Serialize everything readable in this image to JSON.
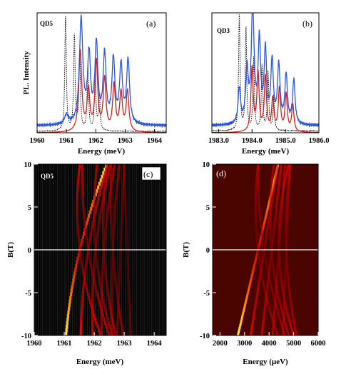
{
  "chart_data": [
    {
      "panel": "a",
      "type": "line",
      "panel_label": "(a)",
      "dot_label": "QD5",
      "xlabel": "Energy (meV)",
      "ylabel": "PL. Intensity",
      "xlim": [
        1960,
        1964.4
      ],
      "xticks": [
        1960,
        1961,
        1962,
        1963,
        1964
      ],
      "ylim": [
        0,
        1
      ],
      "grid": false,
      "series": [
        {
          "style": "dotted",
          "color": "#000000",
          "background": 0.012,
          "peaks": [
            [
              1960.97,
              1.0,
              0.03
            ],
            [
              1961.27,
              0.82,
              0.03
            ],
            [
              1961.45,
              0.66,
              0.03
            ],
            [
              1961.73,
              0.55,
              0.03
            ],
            [
              1961.98,
              0.47,
              0.03
            ],
            [
              1962.12,
              0.32,
              0.03
            ]
          ]
        },
        {
          "style": "solid",
          "color": "#d42020",
          "background": 0.0,
          "peaks": [
            [
              1961.47,
              0.7,
              0.06
            ],
            [
              1961.75,
              0.35,
              0.055
            ],
            [
              1962.02,
              0.6,
              0.055
            ],
            [
              1962.3,
              0.45,
              0.055
            ],
            [
              1962.62,
              0.4,
              0.055
            ],
            [
              1962.86,
              0.33,
              0.055
            ],
            [
              1963.08,
              0.35,
              0.055
            ]
          ]
        },
        {
          "style": "solid",
          "color": "#2c55e0",
          "background": 0.06,
          "peaks": [
            [
              1961.5,
              0.9,
              0.07
            ],
            [
              1961.77,
              0.58,
              0.06
            ],
            [
              1962.02,
              0.68,
              0.06
            ],
            [
              1962.3,
              0.59,
              0.06
            ],
            [
              1962.6,
              0.55,
              0.06
            ],
            [
              1962.86,
              0.5,
              0.06
            ],
            [
              1963.1,
              0.55,
              0.06
            ],
            [
              1961.0,
              0.08,
              0.08
            ]
          ]
        }
      ]
    },
    {
      "panel": "b",
      "type": "line",
      "panel_label": "(b)",
      "dot_label": "QD3",
      "xlabel": "Energy (meV)",
      "ylabel": "",
      "xlim": [
        1982.8,
        1986.0
      ],
      "xticks": [
        "1983.0",
        "1984.0",
        "1985.0",
        "1986.0"
      ],
      "ylim": [
        0,
        1
      ],
      "grid": false,
      "series": [
        {
          "style": "dotted",
          "color": "#000000",
          "background": 0.015,
          "peaks": [
            [
              1983.62,
              1.0,
              0.025
            ],
            [
              1983.82,
              0.87,
              0.025
            ],
            [
              1984.05,
              0.62,
              0.025
            ],
            [
              1984.3,
              0.56,
              0.025
            ],
            [
              1984.48,
              0.5,
              0.025
            ],
            [
              1984.65,
              0.3,
              0.025
            ]
          ]
        },
        {
          "style": "solid",
          "color": "#d42020",
          "background": 0.0,
          "peaks": [
            [
              1984.0,
              0.55,
              0.04
            ],
            [
              1984.18,
              0.5,
              0.04
            ],
            [
              1984.4,
              0.47,
              0.04
            ],
            [
              1984.62,
              0.28,
              0.04
            ],
            [
              1984.82,
              0.37,
              0.04
            ],
            [
              1985.02,
              0.32,
              0.04
            ],
            [
              1985.22,
              0.23,
              0.04
            ]
          ]
        },
        {
          "style": "solid",
          "color": "#2c55e0",
          "background": 0.06,
          "peaks": [
            [
              1983.62,
              0.3,
              0.045
            ],
            [
              1983.85,
              0.45,
              0.045
            ],
            [
              1984.02,
              1.0,
              0.05
            ],
            [
              1984.22,
              0.7,
              0.045
            ],
            [
              1984.4,
              0.62,
              0.045
            ],
            [
              1984.6,
              0.53,
              0.045
            ],
            [
              1984.8,
              0.5,
              0.045
            ],
            [
              1985.02,
              0.42,
              0.045
            ],
            [
              1985.25,
              0.38,
              0.045
            ]
          ]
        }
      ]
    },
    {
      "panel": "c",
      "type": "heatmap",
      "panel_label": "(c)",
      "dot_label": "QD5",
      "xlabel": "Energy (meV)",
      "ylabel": "B(T)",
      "xlim": [
        1960,
        1964.4
      ],
      "xticks": [
        1960,
        1961,
        1962,
        1963,
        1964
      ],
      "ylim": [
        -10,
        10
      ],
      "yticks": [
        10,
        5,
        0,
        -5,
        -10
      ],
      "colormap": "black-red-yellow",
      "columns": 70,
      "zero_line_at_B": 0,
      "branches": [
        {
          "E_at_B0": 1961.52,
          "dE_per_T": 0.068,
          "curvature": 0.0022,
          "intensity": 1.0
        },
        {
          "E_at_B0": 1961.52,
          "dE_per_T": -0.035,
          "curvature": 0.0035,
          "intensity": 0.55
        },
        {
          "E_at_B0": 1961.8,
          "dE_per_T": 0.045,
          "curvature": 0.002,
          "intensity": 0.6
        },
        {
          "E_at_B0": 1961.8,
          "dE_per_T": -0.045,
          "curvature": 0.0025,
          "intensity": 0.5
        },
        {
          "E_at_B0": 1962.05,
          "dE_per_T": 0.03,
          "curvature": 0.002,
          "intensity": 0.5
        },
        {
          "E_at_B0": 1962.05,
          "dE_per_T": -0.025,
          "curvature": 0.003,
          "intensity": 0.45
        },
        {
          "E_at_B0": 1962.32,
          "dE_per_T": 0.022,
          "curvature": 0.0015,
          "intensity": 0.45
        },
        {
          "E_at_B0": 1962.32,
          "dE_per_T": -0.015,
          "curvature": 0.0025,
          "intensity": 0.45
        },
        {
          "E_at_B0": 1962.62,
          "dE_per_T": 0.012,
          "curvature": 0.001,
          "intensity": 0.4
        },
        {
          "E_at_B0": 1962.62,
          "dE_per_T": -0.02,
          "curvature": 0.0015,
          "intensity": 0.4
        },
        {
          "E_at_B0": 1962.88,
          "dE_per_T": 0.012,
          "curvature": 0.0,
          "intensity": 0.35
        },
        {
          "E_at_B0": 1963.1,
          "dE_per_T": -0.012,
          "curvature": 0.0,
          "intensity": 0.3
        }
      ]
    },
    {
      "panel": "d",
      "type": "heatmap",
      "panel_label": "(d)",
      "dot_label": "",
      "xlabel": "Energy (µeV)",
      "ylabel": "B(T)",
      "xlim": [
        1700,
        6000
      ],
      "xticks": [
        2000,
        3000,
        4000,
        5000,
        6000
      ],
      "ylim": [
        -10,
        10
      ],
      "yticks": [
        10,
        5,
        0,
        -5,
        -10
      ],
      "colormap": "black-red-yellow",
      "zero_line_at_B": 0,
      "branches": [
        {
          "E_at_B0": 3550,
          "dE_per_T": 82,
          "curvature": 0.0,
          "intensity": 1.0
        },
        {
          "E_at_B0": 3550,
          "dE_per_T": -40,
          "curvature": 4.0,
          "intensity": 0.4
        },
        {
          "E_at_B0": 3800,
          "dE_per_T": 55,
          "curvature": 0.0,
          "intensity": 0.55
        },
        {
          "E_at_B0": 3800,
          "dE_per_T": -55,
          "curvature": 3.0,
          "intensity": 0.4
        },
        {
          "E_at_B0": 4100,
          "dE_per_T": 40,
          "curvature": 0.0,
          "intensity": 0.5
        },
        {
          "E_at_B0": 4100,
          "dE_per_T": -30,
          "curvature": 4.0,
          "intensity": 0.45
        },
        {
          "E_at_B0": 4400,
          "dE_per_T": 25,
          "curvature": 0.0,
          "intensity": 0.45
        },
        {
          "E_at_B0": 4400,
          "dE_per_T": -10,
          "curvature": 5.0,
          "intensity": 0.5
        },
        {
          "E_at_B0": 4700,
          "dE_per_T": 15,
          "curvature": 0.0,
          "intensity": 0.4
        },
        {
          "E_at_B0": 4700,
          "dE_per_T": -12,
          "curvature": 3.0,
          "intensity": 0.45
        }
      ]
    }
  ]
}
